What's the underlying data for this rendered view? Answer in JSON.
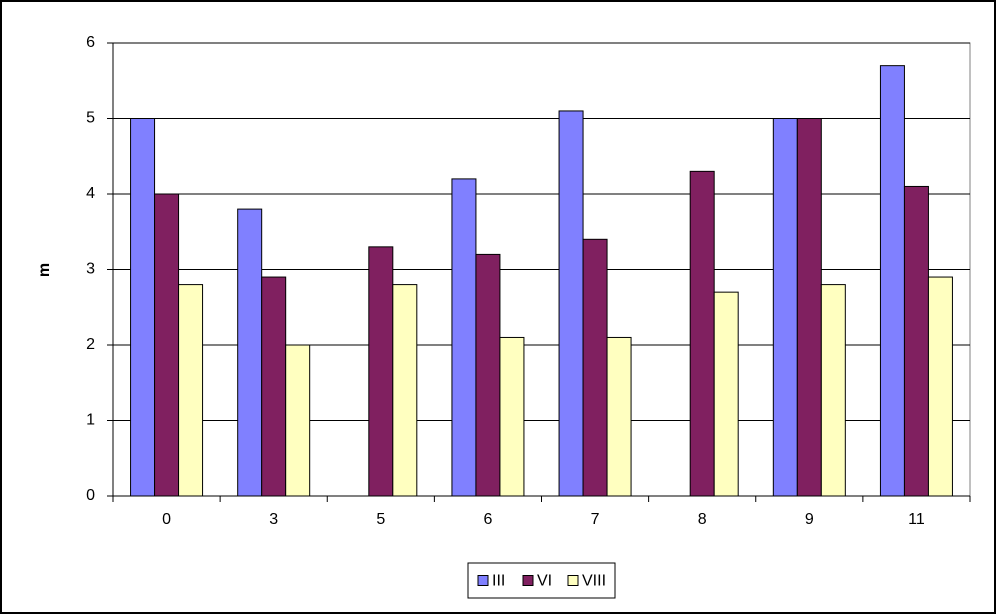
{
  "chart_data": {
    "type": "bar",
    "y_label": "m",
    "categories": [
      "0",
      "3",
      "5",
      "6",
      "7",
      "8",
      "9",
      "11"
    ],
    "series": [
      {
        "name": "III",
        "color": "#8080ff",
        "values": [
          5,
          3.8,
          null,
          4.2,
          5.1,
          null,
          5,
          5.7
        ]
      },
      {
        "name": "VI",
        "color": "#802060",
        "values": [
          4,
          2.9,
          3.3,
          3.2,
          3.4,
          4.3,
          5,
          4.1
        ]
      },
      {
        "name": "VIII",
        "color": "#ffffc0",
        "values": [
          2.8,
          2.0,
          2.8,
          2.1,
          2.1,
          2.7,
          2.8,
          2.9
        ]
      }
    ],
    "ylim": [
      0,
      6
    ],
    "yticks": [
      0,
      1,
      2,
      3,
      4,
      5,
      6
    ],
    "grid": true,
    "legend": "bottom"
  }
}
